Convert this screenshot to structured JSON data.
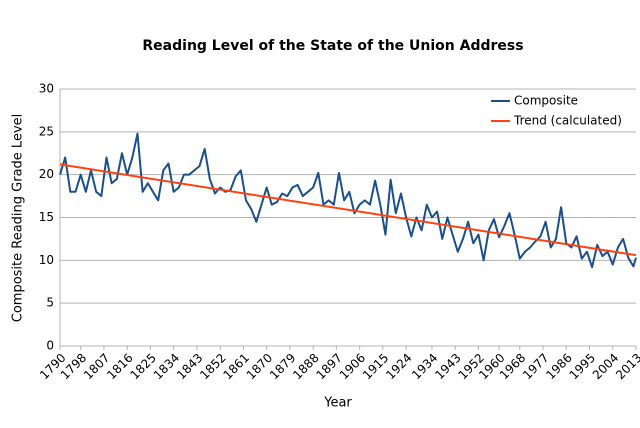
{
  "chart_data": {
    "type": "line",
    "title": "Reading Level of the State of the Union Address",
    "xlabel": "Year",
    "ylabel": "Composite Reading Grade Level",
    "xlim": [
      1790,
      2013
    ],
    "xticks": [
      1790,
      1798,
      1807,
      1816,
      1825,
      1834,
      1843,
      1852,
      1861,
      1870,
      1879,
      1888,
      1897,
      1906,
      1915,
      1924,
      1934,
      1943,
      1952,
      1960,
      1968,
      1977,
      1986,
      1995,
      2004,
      2013
    ],
    "ylim": [
      0,
      30
    ],
    "yticks": [
      0,
      5,
      10,
      15,
      20,
      25,
      30
    ],
    "grid": true,
    "legend": "top-right",
    "series": [
      {
        "name": "Composite",
        "color": "#1a4f8b",
        "x": [
          1790,
          1792,
          1794,
          1796,
          1798,
          1800,
          1802,
          1804,
          1806,
          1808,
          1810,
          1812,
          1814,
          1816,
          1818,
          1820,
          1822,
          1824,
          1826,
          1828,
          1830,
          1832,
          1834,
          1836,
          1838,
          1840,
          1842,
          1844,
          1846,
          1848,
          1850,
          1852,
          1854,
          1856,
          1858,
          1860,
          1862,
          1864,
          1866,
          1868,
          1870,
          1872,
          1874,
          1876,
          1878,
          1880,
          1882,
          1884,
          1886,
          1888,
          1890,
          1892,
          1894,
          1896,
          1898,
          1900,
          1902,
          1904,
          1906,
          1908,
          1910,
          1912,
          1914,
          1916,
          1918,
          1920,
          1922,
          1924,
          1926,
          1928,
          1930,
          1932,
          1934,
          1936,
          1938,
          1940,
          1942,
          1944,
          1946,
          1948,
          1950,
          1952,
          1954,
          1956,
          1958,
          1960,
          1962,
          1964,
          1966,
          1968,
          1970,
          1972,
          1974,
          1976,
          1978,
          1980,
          1982,
          1984,
          1986,
          1988,
          1990,
          1992,
          1994,
          1996,
          1998,
          2000,
          2002,
          2004,
          2006,
          2008,
          2010,
          2012,
          2013
        ],
        "values": [
          20,
          22,
          18,
          18,
          20,
          18,
          20.5,
          18,
          17.5,
          22,
          19,
          19.5,
          22.5,
          20,
          22,
          24.8,
          18,
          19,
          18,
          17,
          20.5,
          21.3,
          18,
          18.5,
          20,
          20,
          20.5,
          21,
          23,
          19.5,
          17.8,
          18.5,
          18,
          18.2,
          19.8,
          20.5,
          17,
          16,
          14.5,
          16.5,
          18.5,
          16.5,
          16.8,
          17.8,
          17.5,
          18.5,
          18.8,
          17.5,
          18,
          18.5,
          20.2,
          16.5,
          17,
          16.5,
          20.2,
          17,
          18,
          15.5,
          16.5,
          17,
          16.5,
          19.3,
          16.5,
          13,
          19.4,
          15.5,
          17.8,
          15,
          12.8,
          15,
          13.5,
          16.5,
          15,
          15.7,
          12.5,
          15,
          13,
          11,
          12.5,
          14.5,
          12,
          13,
          10,
          13.5,
          14.8,
          12.7,
          14,
          15.5,
          13,
          10.2,
          11,
          11.5,
          12.2,
          12.8,
          14.5,
          11.5,
          12.5,
          16.2,
          12,
          11.5,
          12.8,
          10.2,
          11,
          9.2,
          11.8,
          10.5,
          11,
          9.5,
          11.5,
          12.5,
          10.3,
          9.3,
          10.3
        ]
      },
      {
        "name": "Trend  (calculated)",
        "color": "#ff420e",
        "x": [
          1790,
          2013
        ],
        "values": [
          21.2,
          10.6
        ]
      }
    ]
  }
}
